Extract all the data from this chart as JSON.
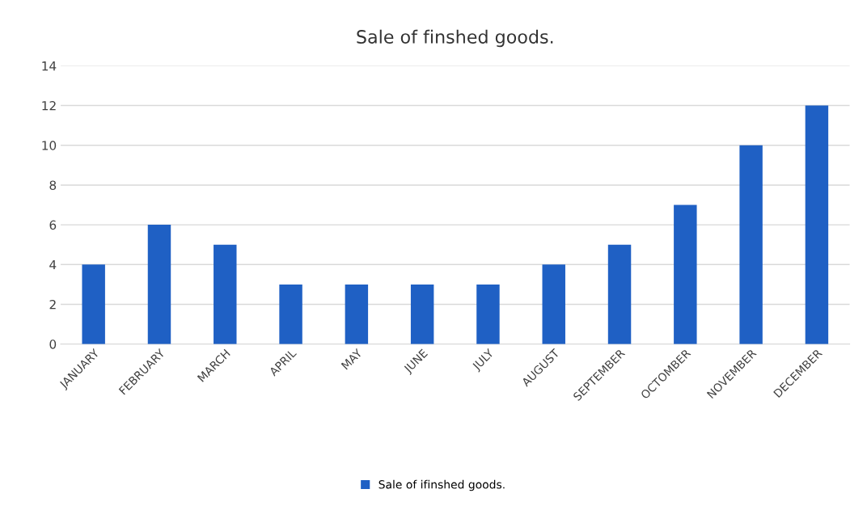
{
  "chart_data": {
    "type": "bar",
    "title": "Sale of finshed goods.",
    "categories": [
      "JANUARY",
      "FEBRUARY",
      "MARCH",
      "APRIL",
      "MAY",
      "JUNE",
      "JULY",
      "AUGUST",
      "SEPTEMBER",
      "OCTOMBER",
      "NOVEMBER",
      "DECEMBER"
    ],
    "series": [
      {
        "name": "Sale of ifinshed goods.",
        "color": "#1f60c4",
        "values": [
          4,
          6,
          5,
          3,
          3,
          3,
          3,
          4,
          5,
          7,
          10,
          12
        ]
      }
    ],
    "ylim": [
      0,
      14
    ],
    "yticks": [
      0,
      2,
      4,
      6,
      8,
      10,
      12,
      14
    ],
    "grid": "y",
    "legend": "bottom"
  }
}
